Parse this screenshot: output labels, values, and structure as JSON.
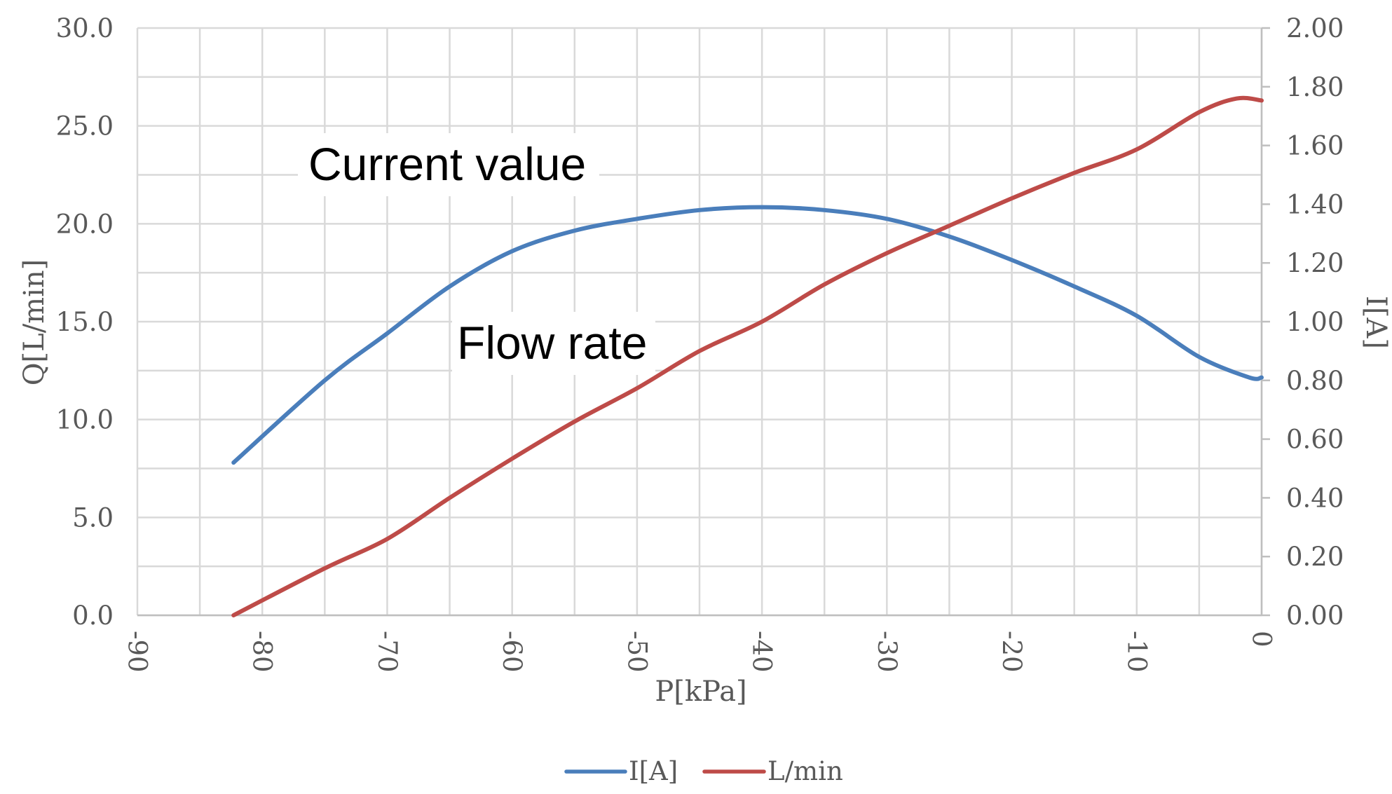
{
  "chart_data": {
    "type": "line",
    "xlabel": "P[kPa]",
    "ylabel_left": "Q[L/min]",
    "ylabel_right": "I[A]",
    "x_ticks": [
      "-90",
      "-80",
      "-70",
      "-60",
      "-50",
      "-40",
      "-30",
      "-20",
      "-10",
      "0"
    ],
    "xlim": [
      -90,
      0
    ],
    "y_left_ticks": [
      "0.0",
      "5.0",
      "10.0",
      "15.0",
      "20.0",
      "25.0",
      "30.0"
    ],
    "y_left_lim": [
      0,
      30
    ],
    "y_right_ticks": [
      "0.00",
      "0.20",
      "0.40",
      "0.60",
      "0.80",
      "1.00",
      "1.20",
      "1.40",
      "1.60",
      "1.80",
      "2.00"
    ],
    "y_right_lim": [
      0,
      2
    ],
    "grid": true,
    "legend_position": "bottom",
    "annotations": [
      {
        "text": "Current value"
      },
      {
        "text": "Flow rate"
      }
    ],
    "series": [
      {
        "name": "I[A]",
        "axis": "right",
        "color": "#4a7ebb",
        "x": [
          -82.3,
          -75,
          -70,
          -65,
          -60,
          -55,
          -50,
          -45,
          -40,
          -35,
          -30,
          -25,
          -20,
          -15,
          -10,
          -5,
          -1,
          0
        ],
        "values": [
          0.52,
          0.8,
          0.96,
          1.12,
          1.24,
          1.31,
          1.35,
          1.38,
          1.39,
          1.38,
          1.35,
          1.29,
          1.21,
          1.12,
          1.02,
          0.88,
          0.81,
          0.81
        ]
      },
      {
        "name": "L/min",
        "axis": "left",
        "color": "#be4b48",
        "x": [
          -82.3,
          -75,
          -70,
          -65,
          -60,
          -55,
          -50,
          -45,
          -40,
          -35,
          -30,
          -25,
          -20,
          -15,
          -10,
          -5,
          -2,
          0
        ],
        "values": [
          0.0,
          2.4,
          3.9,
          6.0,
          8.0,
          9.9,
          11.6,
          13.5,
          15.0,
          16.9,
          18.5,
          19.9,
          21.3,
          22.6,
          23.8,
          25.7,
          26.4,
          26.3
        ]
      }
    ]
  }
}
